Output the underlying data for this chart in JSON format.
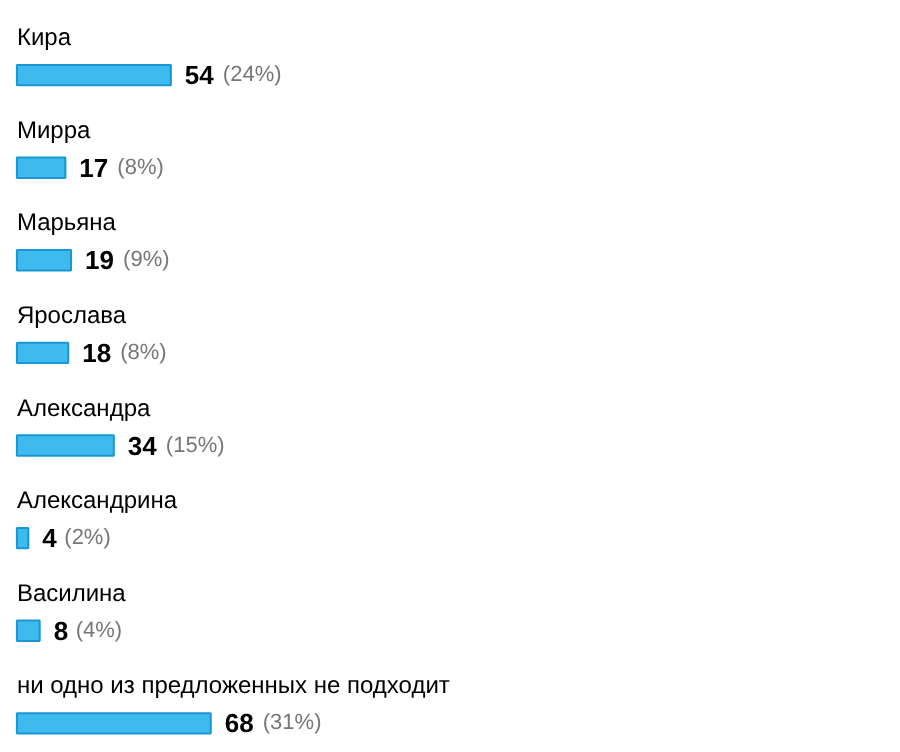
{
  "chart_data": {
    "type": "bar",
    "orientation": "horizontal",
    "categories": [
      "Кира",
      "Мирра",
      "Марьяна",
      "Ярослава",
      "Александра",
      "Александрина",
      "Василина",
      "ни одно из предложенных не подходит"
    ],
    "values": [
      54,
      17,
      19,
      18,
      34,
      4,
      8,
      68
    ],
    "value_labels": [
      "54 (24%)",
      "17 (8%)",
      "19 (9%)",
      "18 (8%)",
      "34 (15%)",
      "4 (2%)",
      "8 (4%)",
      "68 (31%)"
    ],
    "color": "#3ebbee",
    "grid": false,
    "tick_labels": false
  }
}
